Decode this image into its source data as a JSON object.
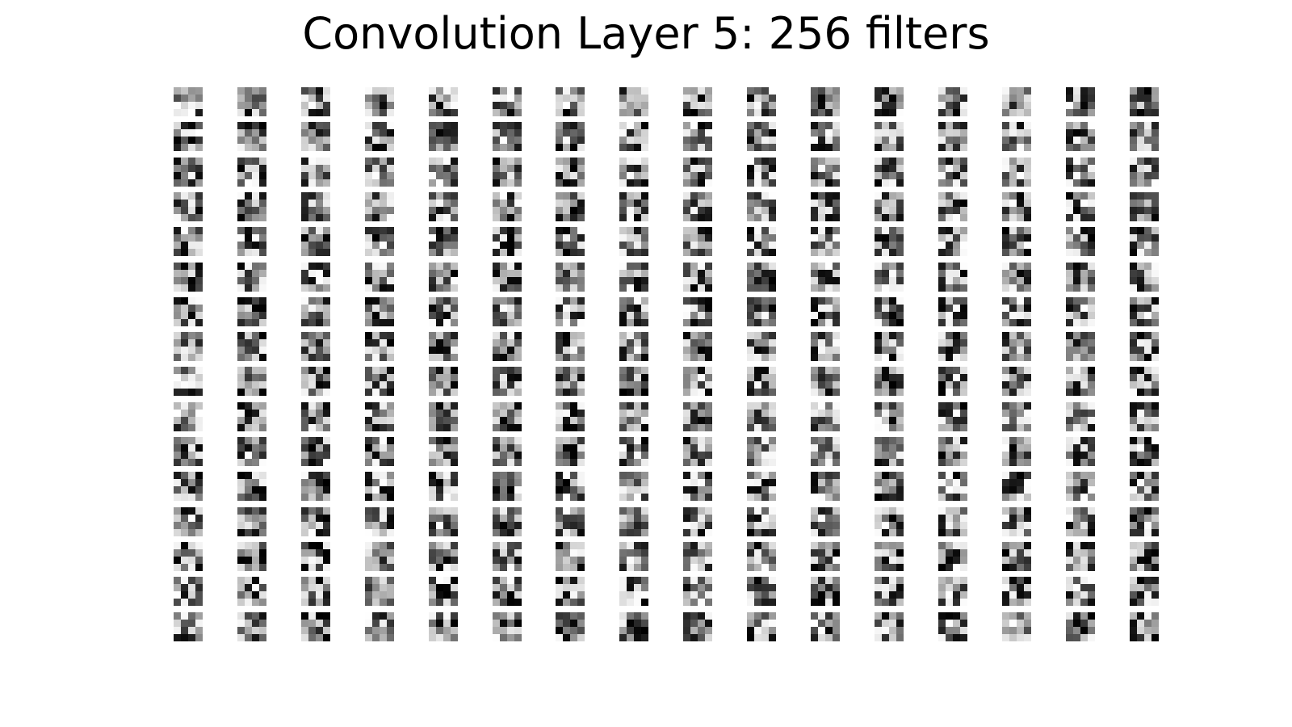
{
  "figure": {
    "title": "Convolution Layer 5: 256 filters",
    "colormap": "gray_r",
    "background_color": "#ffffff"
  },
  "filter_grid": {
    "rows": 16,
    "columns": 16,
    "filter_count": 256,
    "filter_pixels": [
      4,
      4
    ]
  }
}
